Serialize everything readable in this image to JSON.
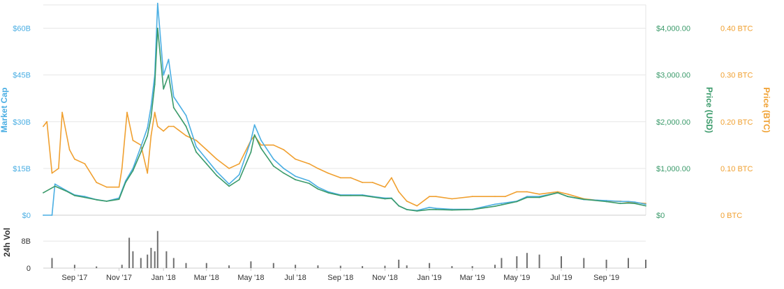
{
  "chart_data": {
    "type": "line",
    "colors": {
      "market_cap": "#4aaee3",
      "price_usd": "#3a9a6a",
      "price_btc": "#f0a030",
      "volume": "#6f6f6f",
      "grid": "#e6e6e6"
    },
    "axes": {
      "market_cap": {
        "label": "Market Cap",
        "ticks": [
          "$0",
          "$15B",
          "$30B",
          "$45B",
          "$60B"
        ],
        "range": [
          0,
          67500000000
        ]
      },
      "price_usd": {
        "label": "Price (USD)",
        "ticks": [
          "$0",
          "$1,000.00",
          "$2,000.00",
          "$3,000.00",
          "$4,000.00"
        ],
        "range": [
          0,
          4500
        ]
      },
      "price_btc": {
        "label": "Price (BTC)",
        "ticks": [
          "0 BTC",
          "0.10 BTC",
          "0.20 BTC",
          "0.30 BTC",
          "0.40 BTC"
        ],
        "range": [
          0,
          0.45
        ]
      },
      "volume": {
        "label": "24h Vol",
        "ticks": [
          "0",
          "8B"
        ],
        "range": [
          0,
          13000000000
        ]
      }
    },
    "x_ticks": [
      "Sep '17",
      "Nov '17",
      "Jan '18",
      "Mar '18",
      "May '18",
      "Jul '18",
      "Sep '18",
      "Nov '18",
      "Jan '19",
      "Mar '19",
      "May '19",
      "Jul '19",
      "Sep '19"
    ],
    "x_range": [
      "2017-07-20",
      "2019-10-25"
    ],
    "series": [
      {
        "name": "Market Cap",
        "axis": "market_cap",
        "x": [
          "2017-07-20",
          "2017-08-01",
          "2017-08-05",
          "2017-08-20",
          "2017-09-01",
          "2017-09-15",
          "2017-10-01",
          "2017-10-15",
          "2017-11-01",
          "2017-11-10",
          "2017-11-20",
          "2017-12-01",
          "2017-12-10",
          "2017-12-15",
          "2017-12-20",
          "2017-12-24",
          "2018-01-01",
          "2018-01-08",
          "2018-01-15",
          "2018-02-01",
          "2018-02-15",
          "2018-03-01",
          "2018-03-15",
          "2018-04-01",
          "2018-04-15",
          "2018-05-01",
          "2018-05-06",
          "2018-05-15",
          "2018-06-01",
          "2018-06-15",
          "2018-07-01",
          "2018-07-20",
          "2018-08-01",
          "2018-08-15",
          "2018-09-01",
          "2018-09-15",
          "2018-10-01",
          "2018-10-15",
          "2018-11-01",
          "2018-11-10",
          "2018-11-20",
          "2018-12-01",
          "2018-12-15",
          "2019-01-01",
          "2019-01-10",
          "2019-02-01",
          "2019-03-01",
          "2019-04-01",
          "2019-04-10",
          "2019-05-01",
          "2019-05-15",
          "2019-06-01",
          "2019-06-26",
          "2019-07-10",
          "2019-08-01",
          "2019-09-01",
          "2019-09-20",
          "2019-10-01",
          "2019-10-10",
          "2019-10-25"
        ],
        "y": [
          0,
          0,
          10000000000,
          8000000000,
          6500000000,
          6000000000,
          5000000000,
          4500000000,
          5500000000,
          11000000000,
          15000000000,
          22000000000,
          28000000000,
          35000000000,
          45000000000,
          68000000000,
          45000000000,
          50000000000,
          38000000000,
          32000000000,
          22000000000,
          18000000000,
          14000000000,
          10000000000,
          13000000000,
          24000000000,
          29000000000,
          24000000000,
          18000000000,
          15000000000,
          12500000000,
          11000000000,
          9000000000,
          7500000000,
          6500000000,
          6500000000,
          6500000000,
          6000000000,
          5500000000,
          5500000000,
          3000000000,
          1800000000,
          1500000000,
          2500000000,
          2200000000,
          1900000000,
          1900000000,
          3500000000,
          3800000000,
          4500000000,
          6000000000,
          6000000000,
          7200000000,
          6000000000,
          5000000000,
          4700000000,
          4400000000,
          4400000000,
          4200000000,
          3500000000
        ]
      },
      {
        "name": "Price (USD)",
        "axis": "price_usd",
        "x": [
          "2017-07-20",
          "2017-08-05",
          "2017-08-20",
          "2017-09-01",
          "2017-09-15",
          "2017-10-01",
          "2017-10-15",
          "2017-11-01",
          "2017-11-10",
          "2017-11-20",
          "2017-12-01",
          "2017-12-10",
          "2017-12-15",
          "2017-12-20",
          "2017-12-24",
          "2018-01-01",
          "2018-01-08",
          "2018-01-15",
          "2018-02-01",
          "2018-02-15",
          "2018-03-01",
          "2018-03-15",
          "2018-04-01",
          "2018-04-15",
          "2018-05-01",
          "2018-05-06",
          "2018-05-15",
          "2018-06-01",
          "2018-06-15",
          "2018-07-01",
          "2018-07-20",
          "2018-08-01",
          "2018-08-15",
          "2018-09-01",
          "2018-09-15",
          "2018-10-01",
          "2018-10-15",
          "2018-11-01",
          "2018-11-10",
          "2018-11-20",
          "2018-12-01",
          "2018-12-15",
          "2019-01-01",
          "2019-01-10",
          "2019-02-01",
          "2019-03-01",
          "2019-04-01",
          "2019-04-10",
          "2019-05-01",
          "2019-05-15",
          "2019-06-01",
          "2019-06-26",
          "2019-07-10",
          "2019-08-01",
          "2019-09-01",
          "2019-09-20",
          "2019-10-01",
          "2019-10-10",
          "2019-10-25"
        ],
        "y": [
          480,
          620,
          520,
          420,
          380,
          330,
          300,
          340,
          700,
          950,
          1350,
          1700,
          2100,
          2800,
          4000,
          2700,
          3000,
          2300,
          1900,
          1350,
          1100,
          850,
          620,
          760,
          1350,
          1720,
          1430,
          1050,
          900,
          760,
          680,
          560,
          480,
          420,
          420,
          420,
          390,
          350,
          360,
          200,
          120,
          90,
          120,
          120,
          110,
          120,
          190,
          220,
          290,
          380,
          380,
          480,
          400,
          340,
          290,
          250,
          260,
          250,
          200
        ]
      },
      {
        "name": "Price (BTC)",
        "axis": "price_btc",
        "x": [
          "2017-07-20",
          "2017-07-25",
          "2017-08-01",
          "2017-08-10",
          "2017-08-15",
          "2017-08-25",
          "2017-09-01",
          "2017-09-15",
          "2017-10-01",
          "2017-10-15",
          "2017-11-01",
          "2017-11-05",
          "2017-11-12",
          "2017-11-20",
          "2017-12-01",
          "2017-12-10",
          "2017-12-15",
          "2017-12-20",
          "2017-12-24",
          "2018-01-01",
          "2018-01-08",
          "2018-01-15",
          "2018-02-01",
          "2018-02-15",
          "2018-03-01",
          "2018-03-15",
          "2018-04-01",
          "2018-04-15",
          "2018-05-01",
          "2018-05-06",
          "2018-05-15",
          "2018-06-01",
          "2018-06-15",
          "2018-07-01",
          "2018-07-20",
          "2018-08-01",
          "2018-08-15",
          "2018-09-01",
          "2018-09-15",
          "2018-10-01",
          "2018-10-15",
          "2018-11-01",
          "2018-11-10",
          "2018-11-20",
          "2018-12-01",
          "2018-12-15",
          "2019-01-01",
          "2019-01-10",
          "2019-02-01",
          "2019-03-01",
          "2019-04-01",
          "2019-04-15",
          "2019-05-01",
          "2019-05-15",
          "2019-06-01",
          "2019-06-26",
          "2019-07-10",
          "2019-08-01",
          "2019-09-01",
          "2019-09-20",
          "2019-10-01",
          "2019-10-10",
          "2019-10-25"
        ],
        "y": [
          0.19,
          0.2,
          0.09,
          0.1,
          0.22,
          0.14,
          0.12,
          0.11,
          0.07,
          0.06,
          0.06,
          0.1,
          0.22,
          0.16,
          0.15,
          0.09,
          0.17,
          0.22,
          0.19,
          0.18,
          0.19,
          0.19,
          0.17,
          0.16,
          0.14,
          0.12,
          0.1,
          0.11,
          0.16,
          0.17,
          0.15,
          0.15,
          0.14,
          0.12,
          0.11,
          0.1,
          0.09,
          0.08,
          0.08,
          0.07,
          0.07,
          0.06,
          0.08,
          0.05,
          0.03,
          0.02,
          0.04,
          0.04,
          0.035,
          0.04,
          0.04,
          0.04,
          0.05,
          0.05,
          0.045,
          0.05,
          0.045,
          0.035,
          0.03,
          0.03,
          0.028,
          0.027,
          0.025
        ]
      },
      {
        "name": "24h Vol",
        "axis": "volume",
        "x": [
          "2017-08-01",
          "2017-09-01",
          "2017-10-01",
          "2017-11-05",
          "2017-11-15",
          "2017-11-20",
          "2017-12-01",
          "2017-12-10",
          "2017-12-15",
          "2017-12-20",
          "2017-12-24",
          "2018-01-05",
          "2018-01-15",
          "2018-02-01",
          "2018-03-01",
          "2018-04-01",
          "2018-05-01",
          "2018-06-01",
          "2018-07-01",
          "2018-08-01",
          "2018-09-01",
          "2018-10-01",
          "2018-11-01",
          "2018-11-20",
          "2018-12-01",
          "2019-01-01",
          "2019-02-01",
          "2019-03-01",
          "2019-04-01",
          "2019-04-10",
          "2019-05-01",
          "2019-05-15",
          "2019-06-01",
          "2019-07-01",
          "2019-08-01",
          "2019-09-01",
          "2019-10-01",
          "2019-10-25"
        ],
        "y": [
          3000000000,
          1000000000,
          500000000,
          1000000000,
          9000000000,
          5000000000,
          3000000000,
          4000000000,
          6000000000,
          5000000000,
          11000000000,
          5000000000,
          3000000000,
          1500000000,
          1500000000,
          800000000,
          2000000000,
          1500000000,
          1000000000,
          800000000,
          700000000,
          600000000,
          700000000,
          2500000000,
          800000000,
          1500000000,
          600000000,
          600000000,
          1000000000,
          3000000000,
          3500000000,
          4500000000,
          4000000000,
          3500000000,
          3000000000,
          2500000000,
          3000000000,
          2500000000
        ]
      }
    ]
  }
}
